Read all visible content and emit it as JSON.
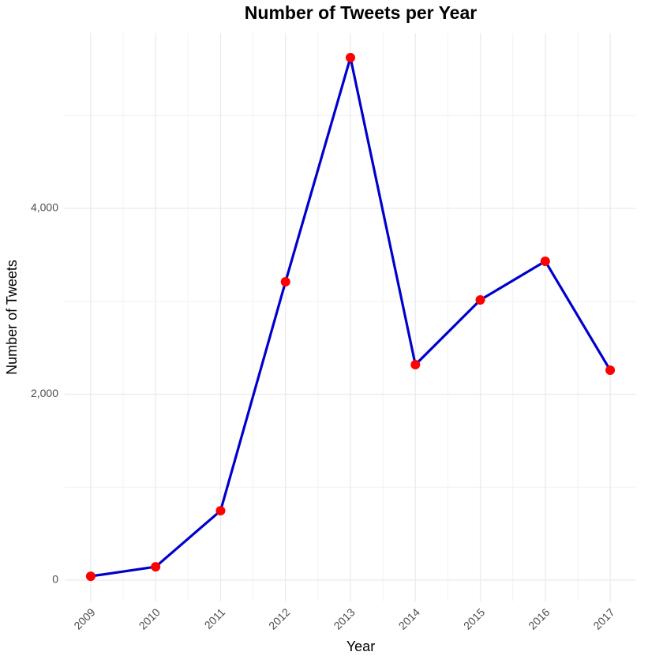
{
  "chart_data": {
    "type": "line",
    "title": "Number of Tweets per Year",
    "x_label": "Year",
    "y_label": "Number of Tweets",
    "x": [
      2009,
      2010,
      2011,
      2012,
      2013,
      2014,
      2015,
      2016,
      2017
    ],
    "series": [
      {
        "name": "Tweets",
        "color": "#0000cd",
        "marker_color": "#ff0000",
        "values": [
          42,
          144,
          747,
          3210,
          5622,
          2318,
          3015,
          3431,
          2259
        ]
      }
    ],
    "xlim": [
      2008.6,
      2017.4
    ],
    "xticks": [
      2009,
      2010,
      2011,
      2012,
      2013,
      2014,
      2015,
      2016,
      2017
    ],
    "ylim": [
      -229,
      5885
    ],
    "yticks": [
      0,
      {
        "value": 2000,
        "label": "2,000"
      },
      {
        "value": 4000,
        "label": "4,000"
      }
    ],
    "grid": true
  }
}
